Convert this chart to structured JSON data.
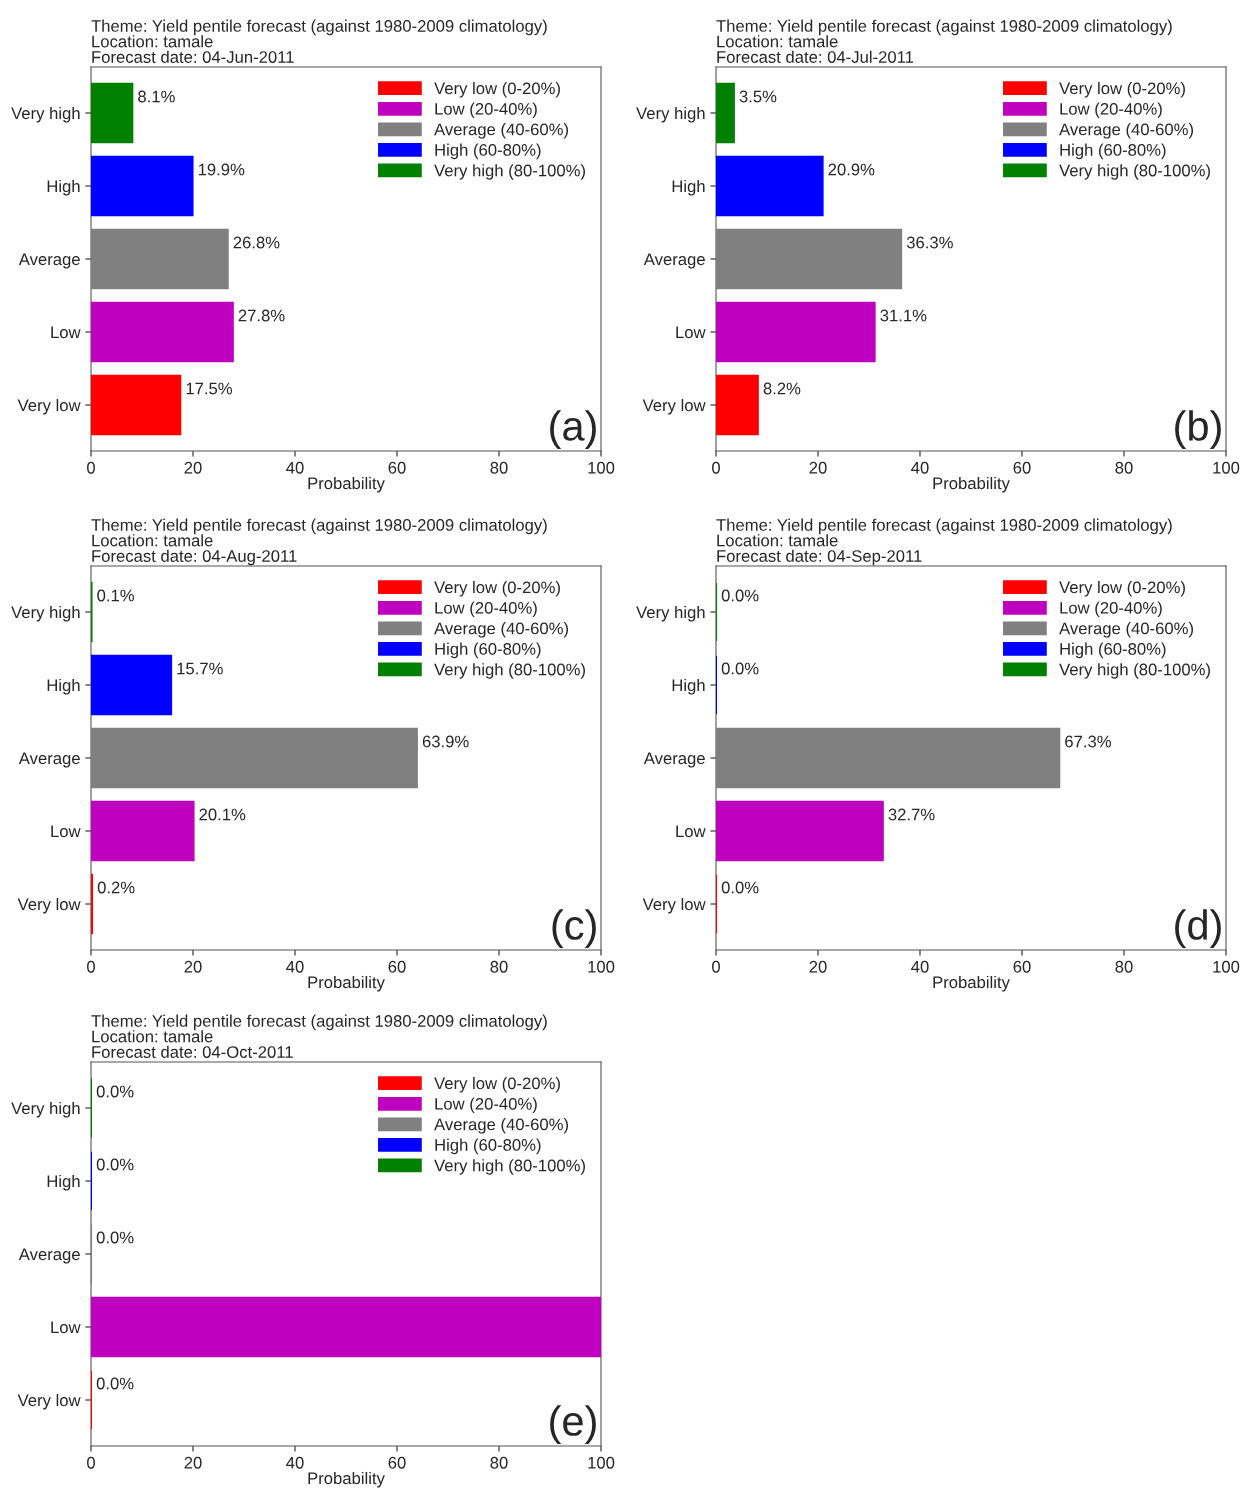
{
  "chart_data": [
    {
      "type": "bar",
      "orientation": "horizontal",
      "title": "Theme: Yield pentile forecast (against 1980-2009 climatology)",
      "subtitle": "Location: tamale\nForecast date: 04-Jun-2011",
      "xlabel": "Probability",
      "categories": [
        "Very high",
        "High",
        "Average",
        "Low",
        "Very low"
      ],
      "xlim": [
        0,
        100
      ],
      "xticks": [
        0,
        20,
        40,
        60,
        80,
        100
      ],
      "grid": false,
      "legend": "top right",
      "annotations": [
        "(a)"
      ],
      "series": [
        {
          "name": "Very low (0-20%)",
          "color": "#ff0000",
          "values": [
            null,
            null,
            null,
            null,
            17.5
          ],
          "value_labels": [
            null,
            null,
            null,
            null,
            "17.5%"
          ]
        },
        {
          "name": "Low (20-40%)",
          "color": "#bf00bf",
          "values": [
            null,
            null,
            null,
            27.8,
            null
          ],
          "value_labels": [
            null,
            null,
            null,
            "27.8%",
            null
          ]
        },
        {
          "name": "Average (40-60%)",
          "color": "#808080",
          "values": [
            null,
            null,
            26.8,
            null,
            null
          ],
          "value_labels": [
            null,
            null,
            "26.8%",
            null,
            null
          ]
        },
        {
          "name": "High (60-80%)",
          "color": "#0000ff",
          "values": [
            null,
            19.9,
            null,
            null,
            null
          ],
          "value_labels": [
            null,
            "19.9%",
            null,
            null,
            null
          ]
        },
        {
          "name": "Very high (80-100%)",
          "color": "#008000",
          "values": [
            8.1,
            null,
            null,
            null,
            null
          ],
          "value_labels": [
            "8.1%",
            null,
            null,
            null,
            null
          ]
        }
      ]
    },
    {
      "type": "bar",
      "orientation": "horizontal",
      "title": "Theme: Yield pentile forecast (against 1980-2009 climatology)",
      "subtitle": "Location: tamale\nForecast date: 04-Jul-2011",
      "xlabel": "Probability",
      "categories": [
        "Very high",
        "High",
        "Average",
        "Low",
        "Very low"
      ],
      "xlim": [
        0,
        100
      ],
      "xticks": [
        0,
        20,
        40,
        60,
        80,
        100
      ],
      "grid": false,
      "legend": "top right",
      "annotations": [
        "(b)"
      ],
      "series": [
        {
          "name": "Very low (0-20%)",
          "color": "#ff0000",
          "values": [
            null,
            null,
            null,
            null,
            8.2
          ],
          "value_labels": [
            null,
            null,
            null,
            null,
            "8.2%"
          ]
        },
        {
          "name": "Low (20-40%)",
          "color": "#bf00bf",
          "values": [
            null,
            null,
            null,
            31.1,
            null
          ],
          "value_labels": [
            null,
            null,
            null,
            "31.1%",
            null
          ]
        },
        {
          "name": "Average (40-60%)",
          "color": "#808080",
          "values": [
            null,
            null,
            36.3,
            null,
            null
          ],
          "value_labels": [
            null,
            null,
            "36.3%",
            null,
            null
          ]
        },
        {
          "name": "High (60-80%)",
          "color": "#0000ff",
          "values": [
            null,
            20.9,
            null,
            null,
            null
          ],
          "value_labels": [
            null,
            "20.9%",
            null,
            null,
            null
          ]
        },
        {
          "name": "Very high (80-100%)",
          "color": "#008000",
          "values": [
            3.5,
            null,
            null,
            null,
            null
          ],
          "value_labels": [
            "3.5%",
            null,
            null,
            null,
            null
          ]
        }
      ]
    },
    {
      "type": "bar",
      "orientation": "horizontal",
      "title": "Theme: Yield pentile forecast (against 1980-2009 climatology)",
      "subtitle": "Location: tamale\nForecast date: 04-Aug-2011",
      "xlabel": "Probability",
      "categories": [
        "Very high",
        "High",
        "Average",
        "Low",
        "Very low"
      ],
      "xlim": [
        0,
        100
      ],
      "xticks": [
        0,
        20,
        40,
        60,
        80,
        100
      ],
      "grid": false,
      "legend": "top right",
      "annotations": [
        "(c)"
      ],
      "series": [
        {
          "name": "Very low (0-20%)",
          "color": "#ff0000",
          "values": [
            null,
            null,
            null,
            null,
            0.2
          ],
          "value_labels": [
            null,
            null,
            null,
            null,
            "0.2%"
          ]
        },
        {
          "name": "Low (20-40%)",
          "color": "#bf00bf",
          "values": [
            null,
            null,
            null,
            20.1,
            null
          ],
          "value_labels": [
            null,
            null,
            null,
            "20.1%",
            null
          ]
        },
        {
          "name": "Average (40-60%)",
          "color": "#808080",
          "values": [
            null,
            null,
            63.9,
            null,
            null
          ],
          "value_labels": [
            null,
            null,
            "63.9%",
            null,
            null
          ]
        },
        {
          "name": "High (60-80%)",
          "color": "#0000ff",
          "values": [
            null,
            15.7,
            null,
            null,
            null
          ],
          "value_labels": [
            null,
            "15.7%",
            null,
            null,
            null
          ]
        },
        {
          "name": "Very high (80-100%)",
          "color": "#008000",
          "values": [
            0.1,
            null,
            null,
            null,
            null
          ],
          "value_labels": [
            "0.1%",
            null,
            null,
            null,
            null
          ]
        }
      ]
    },
    {
      "type": "bar",
      "orientation": "horizontal",
      "title": "Theme: Yield pentile forecast (against 1980-2009 climatology)",
      "subtitle": "Location: tamale\nForecast date: 04-Sep-2011",
      "xlabel": "Probability",
      "categories": [
        "Very high",
        "High",
        "Average",
        "Low",
        "Very low"
      ],
      "xlim": [
        0,
        100
      ],
      "xticks": [
        0,
        20,
        40,
        60,
        80,
        100
      ],
      "grid": false,
      "legend": "top right",
      "annotations": [
        "(d)"
      ],
      "series": [
        {
          "name": "Very low (0-20%)",
          "color": "#ff0000",
          "values": [
            null,
            null,
            null,
            null,
            0.0
          ],
          "value_labels": [
            null,
            null,
            null,
            null,
            "0.0%"
          ]
        },
        {
          "name": "Low (20-40%)",
          "color": "#bf00bf",
          "values": [
            null,
            null,
            null,
            32.7,
            null
          ],
          "value_labels": [
            null,
            null,
            null,
            "32.7%",
            null
          ]
        },
        {
          "name": "Average (40-60%)",
          "color": "#808080",
          "values": [
            null,
            null,
            67.3,
            null,
            null
          ],
          "value_labels": [
            null,
            null,
            "67.3%",
            null,
            null
          ]
        },
        {
          "name": "High (60-80%)",
          "color": "#0000ff",
          "values": [
            null,
            0.0,
            null,
            null,
            null
          ],
          "value_labels": [
            null,
            "0.0%",
            null,
            null,
            null
          ]
        },
        {
          "name": "Very high (80-100%)",
          "color": "#008000",
          "values": [
            0.0,
            null,
            null,
            null,
            null
          ],
          "value_labels": [
            "0.0%",
            null,
            null,
            null,
            null
          ]
        }
      ]
    },
    {
      "type": "bar",
      "orientation": "horizontal",
      "title": "Theme: Yield pentile forecast (against 1980-2009 climatology)",
      "subtitle": "Location: tamale\nForecast date: 04-Oct-2011",
      "xlabel": "Probability",
      "categories": [
        "Very high",
        "High",
        "Average",
        "Low",
        "Very low"
      ],
      "xlim": [
        0,
        100
      ],
      "xticks": [
        0,
        20,
        40,
        60,
        80,
        100
      ],
      "grid": false,
      "legend": "top right",
      "annotations": [
        "(e)"
      ],
      "series": [
        {
          "name": "Very low (0-20%)",
          "color": "#ff0000",
          "values": [
            null,
            null,
            null,
            null,
            0.0
          ],
          "value_labels": [
            null,
            null,
            null,
            null,
            "0.0%"
          ]
        },
        {
          "name": "Low (20-40%)",
          "color": "#bf00bf",
          "values": [
            null,
            null,
            null,
            100,
            null
          ],
          "value_labels": [
            null,
            null,
            null,
            null,
            null
          ]
        },
        {
          "name": "Average (40-60%)",
          "color": "#808080",
          "values": [
            null,
            null,
            0.0,
            null,
            null
          ],
          "value_labels": [
            null,
            null,
            "0.0%",
            null,
            null
          ]
        },
        {
          "name": "High (60-80%)",
          "color": "#0000ff",
          "values": [
            null,
            0.0,
            null,
            null,
            null
          ],
          "value_labels": [
            null,
            "0.0%",
            null,
            null,
            null
          ]
        },
        {
          "name": "Very high (80-100%)",
          "color": "#008000",
          "values": [
            0.0,
            null,
            null,
            null,
            null
          ],
          "value_labels": [
            "0.0%",
            null,
            null,
            null,
            null
          ]
        }
      ]
    }
  ]
}
